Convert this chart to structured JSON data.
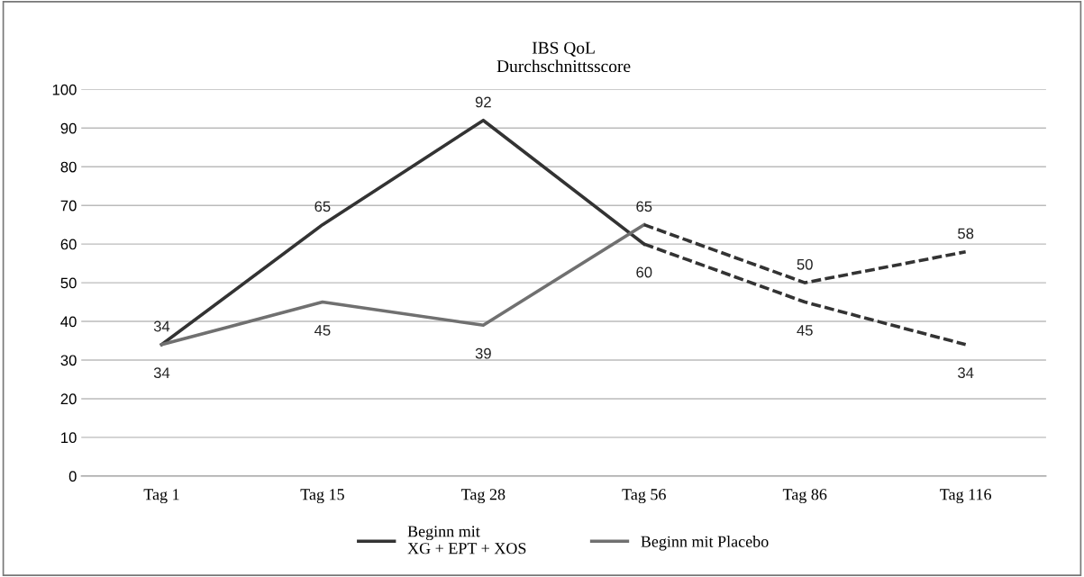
{
  "chart_data": {
    "type": "line",
    "title": "IBS QoL\nDurchschnittsscore",
    "categories": [
      "Tag 1",
      "Tag 15",
      "Tag 28",
      "Tag 56",
      "Tag 86",
      "Tag 116"
    ],
    "series": [
      {
        "name": "Beginn mit\nXG + EPT + XOS",
        "color": "#333333",
        "line_style": "solid",
        "values": [
          34,
          65,
          92,
          60,
          null,
          null
        ],
        "value_labels": [
          "34",
          "65",
          "92",
          "60",
          null,
          null
        ]
      },
      {
        "name": "Beginn mit Placebo",
        "color": "#707070",
        "line_style": "solid",
        "values": [
          34,
          45,
          39,
          65,
          null,
          null
        ],
        "value_labels": [
          "34",
          "45",
          "39",
          "65",
          null,
          null
        ]
      },
      {
        "color": "#333333",
        "line_style": "dashed",
        "values": [
          null,
          null,
          null,
          65,
          50,
          58
        ],
        "value_labels": [
          null,
          null,
          null,
          null,
          "50",
          "58"
        ]
      },
      {
        "color": "#333333",
        "line_style": "dashed",
        "values": [
          null,
          null,
          null,
          60,
          45,
          34
        ],
        "value_labels": [
          null,
          null,
          null,
          null,
          "45",
          "34"
        ]
      }
    ],
    "ylim": [
      0,
      100
    ],
    "yticks": [
      0,
      10,
      20,
      30,
      40,
      50,
      60,
      70,
      80,
      90,
      100
    ],
    "grid": "y",
    "legend": "bottom",
    "marker": "none"
  }
}
